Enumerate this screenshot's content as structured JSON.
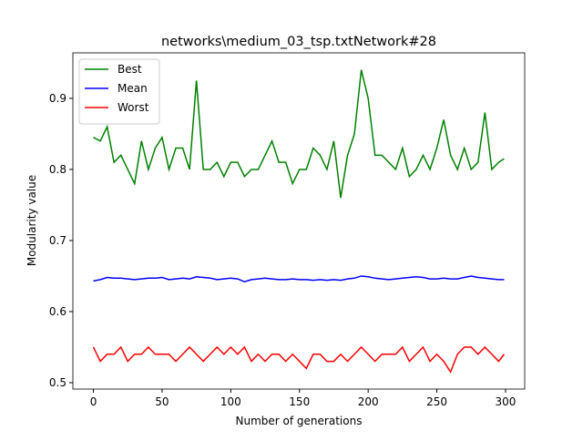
{
  "chart_data": {
    "type": "line",
    "title": "networks\\medium_03_tsp.txtNetwork#28",
    "x_label": "Number of generations",
    "y_label": "Modularity value",
    "x": [
      0,
      5,
      10,
      15,
      20,
      25,
      30,
      35,
      40,
      45,
      50,
      55,
      60,
      65,
      70,
      75,
      80,
      85,
      90,
      95,
      100,
      105,
      110,
      115,
      120,
      125,
      130,
      135,
      140,
      145,
      150,
      155,
      160,
      165,
      170,
      175,
      180,
      185,
      190,
      195,
      200,
      205,
      210,
      215,
      220,
      225,
      230,
      235,
      240,
      245,
      250,
      255,
      260,
      265,
      270,
      275,
      280,
      285,
      290,
      295,
      299
    ],
    "series": [
      {
        "name": "Best",
        "color": "#008000",
        "values": [
          0.845,
          0.84,
          0.86,
          0.81,
          0.82,
          0.8,
          0.78,
          0.84,
          0.8,
          0.83,
          0.845,
          0.8,
          0.83,
          0.83,
          0.8,
          0.925,
          0.8,
          0.8,
          0.81,
          0.79,
          0.81,
          0.81,
          0.79,
          0.8,
          0.8,
          0.82,
          0.84,
          0.81,
          0.81,
          0.78,
          0.8,
          0.8,
          0.83,
          0.82,
          0.8,
          0.84,
          0.76,
          0.82,
          0.85,
          0.94,
          0.9,
          0.82,
          0.82,
          0.81,
          0.8,
          0.83,
          0.79,
          0.8,
          0.82,
          0.8,
          0.83,
          0.87,
          0.82,
          0.8,
          0.83,
          0.8,
          0.81,
          0.88,
          0.8,
          0.81,
          0.815
        ]
      },
      {
        "name": "Mean",
        "color": "#0000ff",
        "values": [
          0.643,
          0.645,
          0.648,
          0.647,
          0.647,
          0.646,
          0.645,
          0.646,
          0.647,
          0.647,
          0.648,
          0.645,
          0.646,
          0.647,
          0.646,
          0.649,
          0.648,
          0.647,
          0.645,
          0.646,
          0.647,
          0.646,
          0.642,
          0.645,
          0.646,
          0.647,
          0.646,
          0.645,
          0.645,
          0.646,
          0.645,
          0.645,
          0.644,
          0.645,
          0.644,
          0.645,
          0.644,
          0.646,
          0.647,
          0.65,
          0.649,
          0.647,
          0.646,
          0.645,
          0.646,
          0.647,
          0.648,
          0.649,
          0.648,
          0.646,
          0.646,
          0.647,
          0.646,
          0.646,
          0.648,
          0.65,
          0.648,
          0.647,
          0.646,
          0.645,
          0.645
        ]
      },
      {
        "name": "Worst",
        "color": "#ff0000",
        "values": [
          0.55,
          0.53,
          0.54,
          0.54,
          0.55,
          0.53,
          0.54,
          0.54,
          0.55,
          0.54,
          0.54,
          0.54,
          0.53,
          0.54,
          0.55,
          0.54,
          0.53,
          0.54,
          0.55,
          0.54,
          0.55,
          0.54,
          0.55,
          0.53,
          0.54,
          0.53,
          0.54,
          0.54,
          0.53,
          0.54,
          0.53,
          0.52,
          0.54,
          0.54,
          0.53,
          0.53,
          0.54,
          0.53,
          0.54,
          0.55,
          0.54,
          0.53,
          0.54,
          0.54,
          0.54,
          0.55,
          0.53,
          0.54,
          0.55,
          0.53,
          0.54,
          0.53,
          0.515,
          0.54,
          0.55,
          0.55,
          0.54,
          0.55,
          0.54,
          0.53,
          0.54
        ]
      }
    ],
    "xlim": [
      -14.95,
      313.95
    ],
    "xticks": [
      0,
      50,
      100,
      150,
      200,
      250,
      300
    ],
    "ylim": [
      0.491,
      0.964
    ],
    "yticks": [
      0.5,
      0.6,
      0.7,
      0.8,
      0.9
    ],
    "legend": "upper left"
  }
}
